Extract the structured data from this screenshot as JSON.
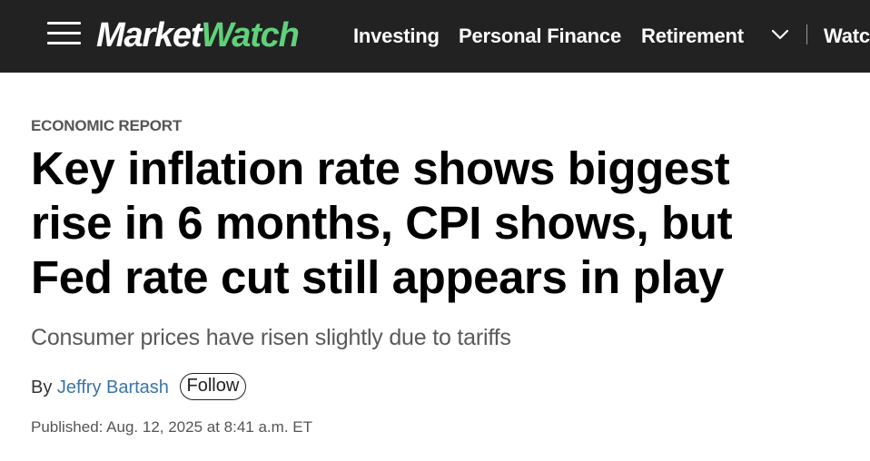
{
  "header": {
    "logo": {
      "part1": "Market",
      "part2": "Watch",
      "accent_color": "#5fd17b"
    },
    "menu_icon": "hamburger-menu-icon",
    "nav_items": [
      {
        "label": "Investing"
      },
      {
        "label": "Personal Finance"
      },
      {
        "label": "Retirement"
      }
    ],
    "more_icon": "chevron-down-icon",
    "overflow_item": "Watc"
  },
  "article": {
    "kicker": "ECONOMIC REPORT",
    "headline_lines": [
      "Key inflation rate shows biggest",
      "rise in 6 months, CPI shows, but",
      "Fed rate cut still appears in play"
    ],
    "dek": "Consumer prices have risen slightly due to tariffs",
    "byline": {
      "prefix": "By",
      "author": "Jeffry Bartash",
      "follow_label": "Follow"
    },
    "published": "Published: Aug. 12, 2025 at 8:41 a.m. ET"
  }
}
